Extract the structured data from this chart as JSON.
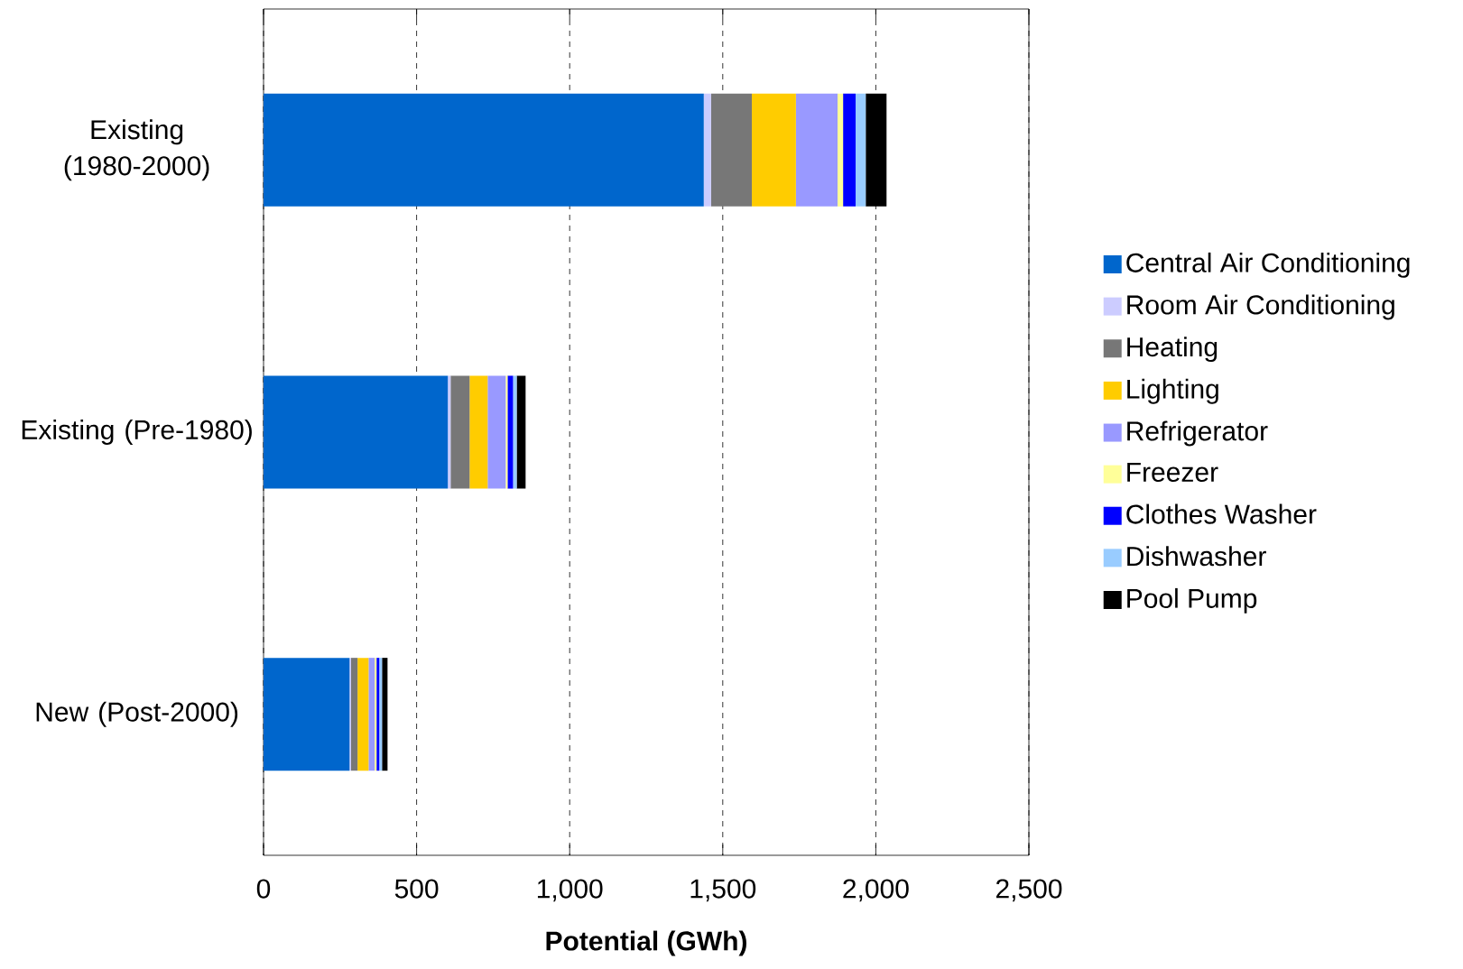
{
  "chart_data": {
    "type": "bar",
    "orientation": "horizontal",
    "stacked": true,
    "categories": [
      "Existing (1980-2000)",
      "Existing (Pre-1980)",
      "New (Post-2000)"
    ],
    "series": [
      {
        "name": "Central Air Conditioning",
        "color": "#0066cc",
        "values": [
          1438,
          602,
          281
        ]
      },
      {
        "name": "Room Air Conditioning",
        "color": "#ccccff",
        "values": [
          24,
          9,
          5
        ]
      },
      {
        "name": "Heating",
        "color": "#777777",
        "values": [
          133,
          62,
          21
        ]
      },
      {
        "name": "Lighting",
        "color": "#ffcc00",
        "values": [
          144,
          59,
          36
        ]
      },
      {
        "name": "Refrigerator",
        "color": "#9999ff",
        "values": [
          136,
          59,
          20
        ]
      },
      {
        "name": "Freezer",
        "color": "#ffff99",
        "values": [
          18,
          6,
          6
        ]
      },
      {
        "name": "Clothes Washer",
        "color": "#0000ff",
        "values": [
          41,
          18,
          9
        ]
      },
      {
        "name": "Dishwasher",
        "color": "#99ccff",
        "values": [
          33,
          12,
          9
        ]
      },
      {
        "name": "Pool Pump",
        "color": "#000000",
        "values": [
          68,
          29,
          18
        ]
      }
    ],
    "xlim": [
      0,
      2500
    ],
    "xticks": [
      0,
      500,
      {
        "value": 1000,
        "label": "1,000"
      },
      {
        "value": 1500,
        "label": "1,500"
      },
      {
        "value": 2000,
        "label": "2,000"
      },
      {
        "value": 2500,
        "label": "2,500"
      }
    ],
    "xlabel": "Potential (GWh)",
    "grid": "x",
    "legend": "right"
  }
}
